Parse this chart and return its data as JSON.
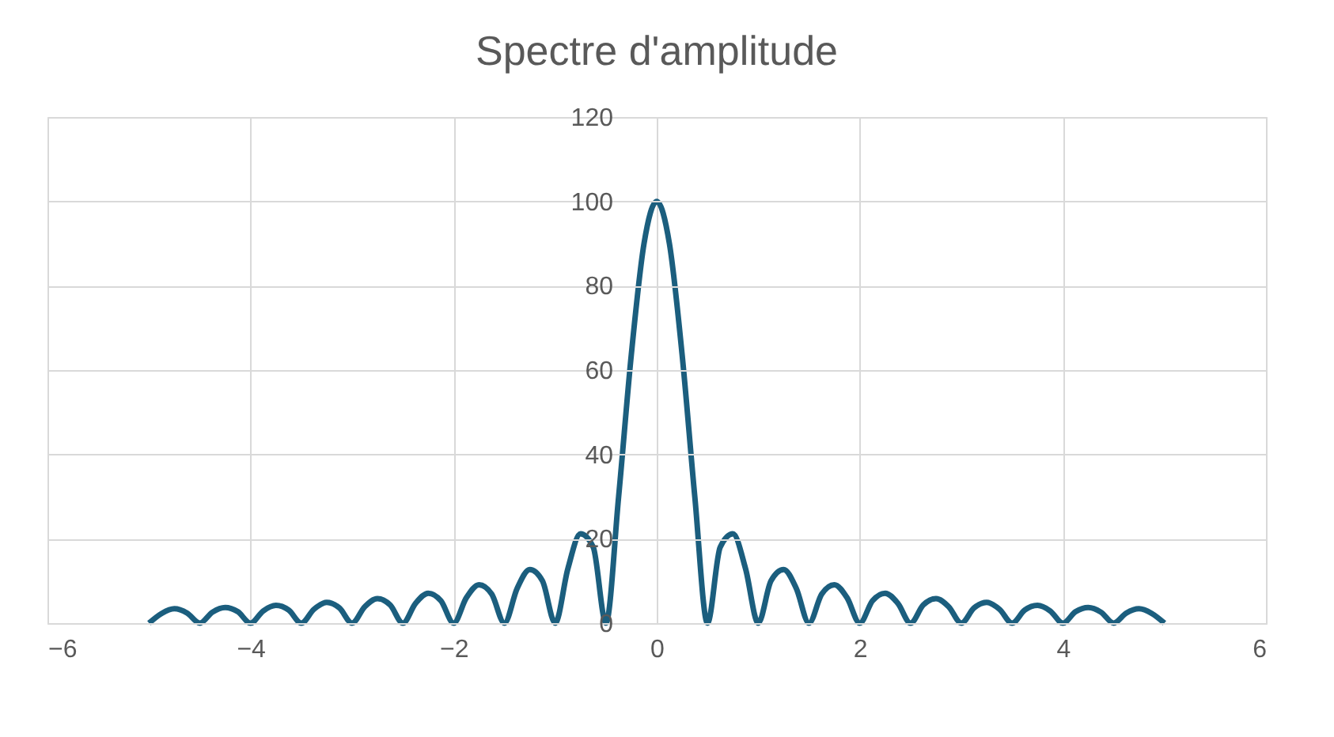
{
  "chart_data": {
    "type": "line",
    "title": "Spectre d'amplitude",
    "x": [
      -5,
      -4.875,
      -4.75,
      -4.625,
      -4.5,
      -4.375,
      -4.25,
      -4.125,
      -4,
      -3.875,
      -3.75,
      -3.625,
      -3.5,
      -3.375,
      -3.25,
      -3.125,
      -3,
      -2.875,
      -2.75,
      -2.625,
      -2.5,
      -2.375,
      -2.25,
      -2.125,
      -2,
      -1.875,
      -1.75,
      -1.625,
      -1.5,
      -1.375,
      -1.25,
      -1.125,
      -1,
      -0.875,
      -0.75,
      -0.625,
      -0.5,
      -0.375,
      -0.25,
      -0.125,
      0,
      0.125,
      0.25,
      0.375,
      0.5,
      0.625,
      0.75,
      0.875,
      1,
      1.125,
      1.25,
      1.375,
      1.5,
      1.625,
      1.75,
      1.875,
      2,
      2.125,
      2.25,
      2.375,
      2.5,
      2.625,
      2.75,
      2.875,
      3,
      3.125,
      3.25,
      3.375,
      3.5,
      3.625,
      3.75,
      3.875,
      4,
      4.125,
      4.25,
      4.375,
      4.5,
      4.625,
      4.75,
      4.875,
      5
    ],
    "series": [
      {
        "color": "#1b5e7e",
        "values": [
          0,
          2.3,
          3.4,
          2.4,
          0,
          2.6,
          3.7,
          2.7,
          0,
          2.9,
          4.2,
          3.1,
          0,
          3.3,
          4.9,
          3.6,
          0,
          3.9,
          5.8,
          4.3,
          0,
          4.7,
          7.1,
          5.3,
          0,
          6.0,
          9.1,
          6.9,
          0,
          8.2,
          12.7,
          10.0,
          0,
          12.9,
          21.2,
          18.0,
          0,
          30.0,
          63.7,
          90.0,
          100,
          90.0,
          63.7,
          30.0,
          0,
          18.0,
          21.2,
          12.9,
          0,
          10.0,
          12.7,
          8.2,
          0,
          6.9,
          9.1,
          6.0,
          0,
          5.3,
          7.1,
          4.7,
          0,
          4.3,
          5.8,
          3.9,
          0,
          3.6,
          4.9,
          3.3,
          0,
          3.1,
          4.2,
          2.9,
          0,
          2.7,
          3.7,
          2.6,
          0,
          2.4,
          3.4,
          2.3,
          0
        ]
      }
    ],
    "xlim": [
      -6,
      6
    ],
    "xticks": [
      -6,
      -4,
      -2,
      0,
      2,
      4,
      6
    ],
    "ylim": [
      0,
      120
    ],
    "yticks": [
      0,
      20,
      40,
      60,
      80,
      100,
      120
    ],
    "grid": true,
    "marker": "none",
    "line_style": "solid"
  }
}
